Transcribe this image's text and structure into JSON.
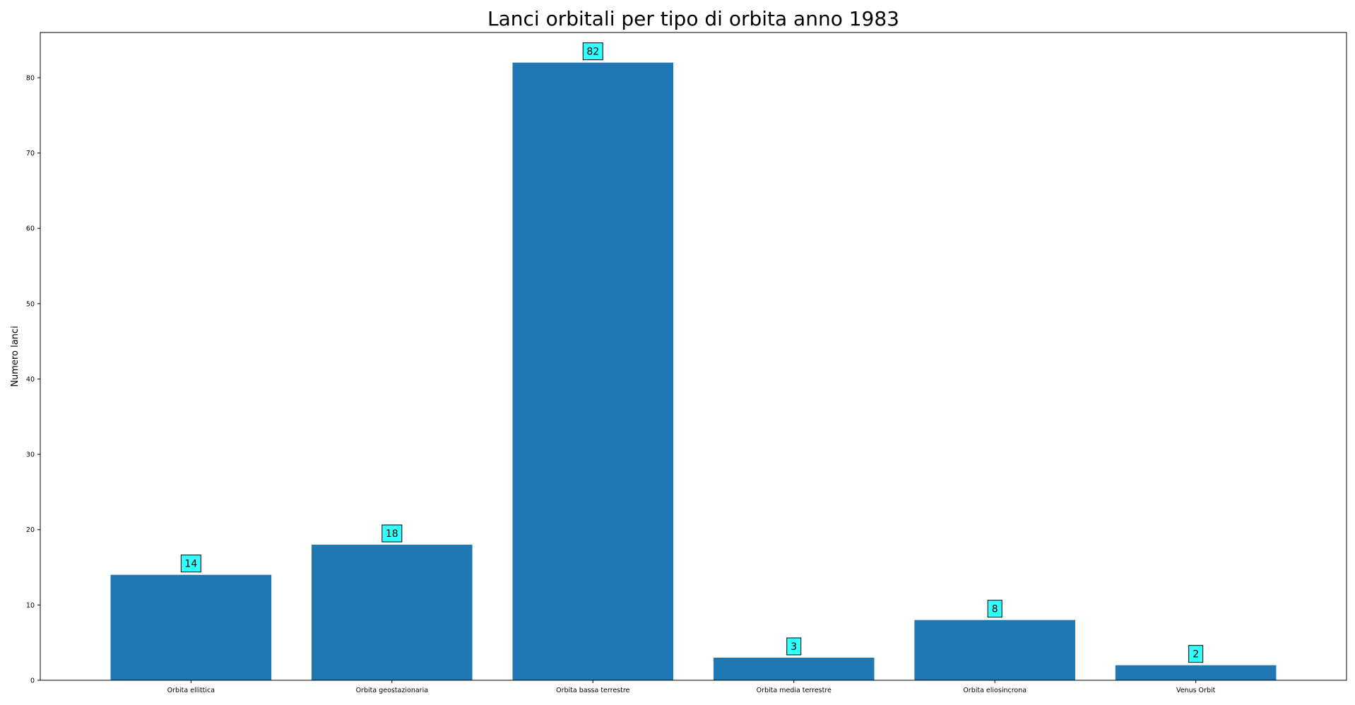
{
  "chart_data": {
    "type": "bar",
    "title": "Lanci orbitali per tipo di orbita anno 1983",
    "xlabel": "",
    "ylabel": "Numero lanci",
    "categories": [
      "Orbita ellittica",
      "Orbita geostazionaria",
      "Orbita bassa terrestre",
      "Orbita media terrestre",
      "Orbita eliosincrona",
      "Venus Orbit"
    ],
    "values": [
      14,
      18,
      82,
      3,
      8,
      2
    ],
    "data_labels": [
      "14",
      "18",
      "82",
      "3",
      "8",
      "2"
    ],
    "ylim": [
      0,
      86
    ],
    "yticks": [
      0,
      10,
      20,
      30,
      40,
      50,
      60,
      70,
      80
    ],
    "ytick_labels": [
      "0",
      "10",
      "20",
      "30",
      "40",
      "50",
      "60",
      "70",
      "80"
    ],
    "grid": false,
    "legend": "none",
    "colors": {
      "bar": "#1f77b4",
      "label_box": "#33ffff",
      "axis": "#000000"
    }
  }
}
